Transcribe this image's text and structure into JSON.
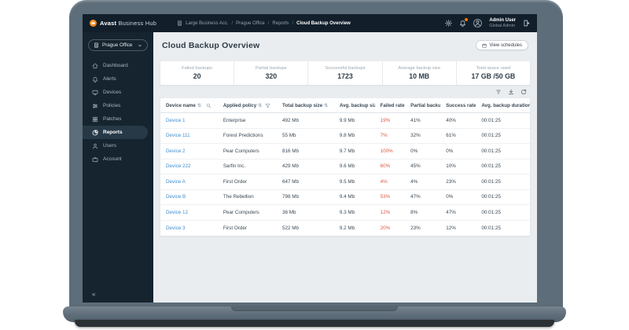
{
  "topbar": {
    "brand_bold": "Avast",
    "brand_rest": " Business Hub",
    "breadcrumb": [
      "Large Business Acc.",
      "Prague Office",
      "Reports",
      "Cloud Backup Overview"
    ],
    "icons": [
      "gear-icon",
      "bell-icon",
      "avatar-icon",
      "logout-icon"
    ],
    "user": {
      "name": "Admin User",
      "role": "Global Admin"
    }
  },
  "sidebar": {
    "site_selector": {
      "label": "Prague Office",
      "icon": "building-icon",
      "chevron": "chevron-down-icon"
    },
    "items": [
      {
        "label": "Dashboard",
        "icon": "home-icon",
        "active": false
      },
      {
        "label": "Alerts",
        "icon": "bell-icon",
        "active": false
      },
      {
        "label": "Devices",
        "icon": "monitor-icon",
        "active": false
      },
      {
        "label": "Policies",
        "icon": "sliders-icon",
        "active": false
      },
      {
        "label": "Patches",
        "icon": "grid-icon",
        "active": false
      },
      {
        "label": "Reports",
        "icon": "pie-chart-icon",
        "active": true
      },
      {
        "label": "Users",
        "icon": "user-icon",
        "active": false
      },
      {
        "label": "Account",
        "icon": "briefcase-icon",
        "active": false
      }
    ],
    "collapse_glyph": "«"
  },
  "main": {
    "title": "Cloud Backup Overview",
    "view_schedules_label": "View schedules",
    "stats": [
      {
        "label": "Failed backups",
        "value": "20"
      },
      {
        "label": "Partial backups",
        "value": "320"
      },
      {
        "label": "Successful backups",
        "value": "1723"
      },
      {
        "label": "Average backup size",
        "value": "10 MB"
      },
      {
        "label": "Total space used",
        "value": "17 GB /50 GB"
      }
    ],
    "table": {
      "toolbar_icons": [
        "filter-icon",
        "download-icon",
        "refresh-icon"
      ],
      "sort_glyph": "⇅",
      "columns": [
        {
          "label": "Device name",
          "extra_icon": "search-icon"
        },
        {
          "label": "Applied policy",
          "extra_icon": "funnel-icon"
        },
        {
          "label": "Total backup size",
          "extra_icon": null
        },
        {
          "label": "Avg. backup size",
          "extra_icon": null
        },
        {
          "label": "Failed rate",
          "extra_icon": null
        },
        {
          "label": "Partial backup rate",
          "extra_icon": null
        },
        {
          "label": "Success rate",
          "extra_icon": null
        },
        {
          "label": "Avg. backup duration",
          "extra_icon": null
        }
      ],
      "rows": [
        [
          "Device 1",
          "Enterprise",
          "492 Mb",
          "9.9 Mb",
          "19%",
          "41%",
          "40%",
          "00:01:25"
        ],
        [
          "Device 111",
          "Forest Predictions",
          "55 Mb",
          "9.8 Mb",
          "7%",
          "32%",
          "61%",
          "00:01:25"
        ],
        [
          "Device 2",
          "Pear Computers",
          "816 Mb",
          "9.7 Mb",
          "100%",
          "0%",
          "0%",
          "00:01:25"
        ],
        [
          "Device 222",
          "Sarfin Inc.",
          "429 Mb",
          "9.6 Mb",
          "60%",
          "45%",
          "10%",
          "00:01:25"
        ],
        [
          "Device A",
          "First Order",
          "647 Mb",
          "9.5 Mb",
          "4%",
          "4%",
          "23%",
          "00:01:25"
        ],
        [
          "Device B",
          "The Rebellion",
          "798 Mb",
          "9.4 Mb",
          "53%",
          "47%",
          "0%",
          "00:01:25"
        ],
        [
          "Device 12",
          "Pear Computers",
          "36 Mb",
          "9.3 Mb",
          "12%",
          "8%",
          "47%",
          "00:01:25"
        ],
        [
          "Device 3",
          "First Order",
          "522 Mb",
          "9.2 Mb",
          "20%",
          "23%",
          "12%",
          "00:01:25"
        ]
      ]
    }
  },
  "colors": {
    "accent_orange": "#ff7800",
    "link_blue": "#3e8ed0",
    "failed_red": "#dd5b41",
    "topbar_navy": "#121f2b",
    "sidebar_navy": "#16242f"
  }
}
